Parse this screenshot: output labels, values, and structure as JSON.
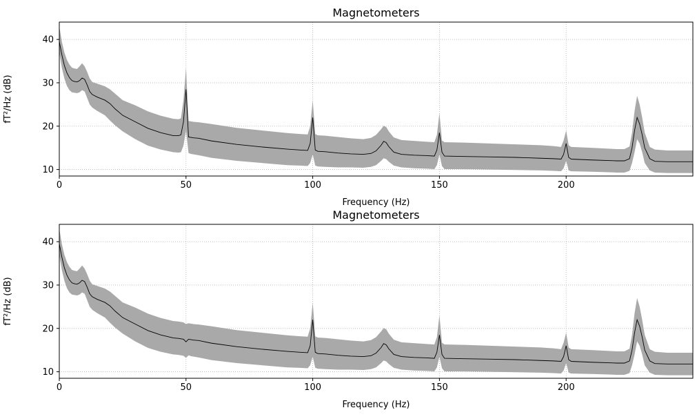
{
  "chart_data": [
    {
      "type": "area",
      "title": "Magnetometers",
      "xlabel": "Frequency (Hz)",
      "ylabel": "fT²/Hz (dB)",
      "xlim": [
        0,
        250
      ],
      "ylim": [
        8.5,
        44
      ],
      "xticks": [
        0,
        50,
        100,
        150,
        200
      ],
      "yticks": [
        10,
        20,
        30,
        40
      ],
      "grid": true,
      "legend": "none",
      "colors": {
        "band": "#a9a9a9",
        "mean": "#000000",
        "grid": "#b0b0b0"
      },
      "series": [
        {
          "x": [
            0,
            1,
            2,
            3,
            4,
            5,
            6,
            7,
            8,
            9,
            10,
            11,
            12,
            13,
            15,
            18,
            20,
            22,
            25,
            30,
            35,
            40,
            45,
            47,
            48,
            49,
            50,
            51,
            52,
            53,
            55,
            60,
            70,
            80,
            90,
            95,
            98,
            99,
            100,
            101,
            102,
            105,
            110,
            115,
            120,
            123,
            125,
            127,
            128,
            129,
            130,
            132,
            135,
            140,
            145,
            148,
            149,
            150,
            151,
            152,
            160,
            170,
            180,
            190,
            195,
            198,
            199,
            200,
            201,
            202,
            210,
            220,
            223,
            225,
            226,
            227,
            228,
            229,
            230,
            231,
            233,
            235,
            240,
            245,
            250
          ],
          "mean": [
            39.5,
            36.5,
            34,
            32.3,
            31.2,
            30.5,
            30.3,
            30.2,
            30.5,
            31.1,
            30.8,
            29.5,
            28,
            27.3,
            26.7,
            26,
            25.2,
            24,
            22.5,
            21,
            19.5,
            18.5,
            17.8,
            17.8,
            18,
            21,
            28.5,
            17.5,
            17.4,
            17.3,
            17.2,
            16.6,
            15.8,
            15.2,
            14.7,
            14.5,
            14.4,
            16,
            22,
            14.5,
            14.2,
            14.1,
            13.8,
            13.6,
            13.5,
            13.7,
            14.3,
            15.6,
            16.5,
            16.2,
            15.3,
            14,
            13.5,
            13.3,
            13.2,
            13.1,
            14.5,
            18.5,
            14,
            13.1,
            13,
            12.9,
            12.8,
            12.6,
            12.5,
            12.4,
            13.5,
            16,
            12.8,
            12.4,
            12.2,
            12,
            12,
            12.5,
            15,
            19,
            22,
            20.5,
            18,
            15,
            12.5,
            11.9,
            11.8,
            11.8,
            11.8
          ],
          "low": [
            37,
            33.5,
            31,
            29.3,
            28.3,
            27.8,
            27.7,
            27.6,
            27.8,
            28.3,
            28,
            26.5,
            25,
            24.3,
            23.5,
            22.5,
            21.3,
            20.2,
            18.8,
            17,
            15.5,
            14.6,
            14,
            13.9,
            14,
            15.5,
            19,
            13.8,
            13.6,
            13.5,
            13.3,
            12.7,
            12,
            11.5,
            11,
            10.9,
            10.8,
            11.5,
            13.5,
            10.9,
            10.7,
            10.6,
            10.5,
            10.5,
            10.4,
            10.6,
            11,
            12,
            12.6,
            12.4,
            11.8,
            10.9,
            10.5,
            10.3,
            10.2,
            10.1,
            11,
            13.5,
            10.8,
            10.1,
            10.1,
            10,
            9.9,
            9.8,
            9.7,
            9.6,
            10.3,
            12,
            9.8,
            9.6,
            9.5,
            9.3,
            9.3,
            9.7,
            11.5,
            14,
            17,
            16,
            14,
            11.5,
            9.8,
            9.3,
            9.2,
            9.2,
            9.2
          ],
          "high": [
            43,
            39.5,
            37,
            35.3,
            34.2,
            33.5,
            33.3,
            33.2,
            33.8,
            34.5,
            33.8,
            32.5,
            31,
            30.2,
            29.8,
            29.2,
            28.5,
            27.5,
            26,
            24.8,
            23.4,
            22.4,
            21.7,
            21.6,
            21.8,
            26,
            33.5,
            21.2,
            21.1,
            21,
            20.9,
            20.5,
            19.6,
            19,
            18.4,
            18.2,
            18.1,
            20,
            26,
            18.2,
            17.9,
            17.8,
            17.5,
            17.2,
            17,
            17.3,
            18,
            19.3,
            20.1,
            19.8,
            18.8,
            17.4,
            16.8,
            16.6,
            16.4,
            16.3,
            18,
            23,
            16.7,
            16.3,
            16.2,
            16,
            15.8,
            15.6,
            15.4,
            15.2,
            16.7,
            19,
            15.6,
            15.2,
            15,
            14.7,
            14.7,
            15.3,
            18.5,
            23.5,
            27,
            25,
            22,
            18.5,
            15.2,
            14.6,
            14.4,
            14.4,
            14.4
          ]
        }
      ]
    },
    {
      "type": "area",
      "title": "Magnetometers",
      "xlabel": "Frequency (Hz)",
      "ylabel": "fT²/Hz (dB)",
      "xlim": [
        0,
        250
      ],
      "ylim": [
        8.5,
        44
      ],
      "xticks": [
        0,
        50,
        100,
        150,
        200
      ],
      "yticks": [
        10,
        20,
        30,
        40
      ],
      "grid": true,
      "legend": "none",
      "colors": {
        "band": "#a9a9a9",
        "mean": "#000000",
        "grid": "#b0b0b0"
      },
      "series": [
        {
          "x": [
            0,
            1,
            2,
            3,
            4,
            5,
            6,
            7,
            8,
            9,
            10,
            11,
            12,
            13,
            15,
            18,
            20,
            22,
            25,
            30,
            35,
            40,
            45,
            47,
            48,
            49,
            50,
            51,
            52,
            53,
            55,
            60,
            70,
            80,
            90,
            95,
            98,
            99,
            100,
            101,
            102,
            105,
            110,
            115,
            120,
            123,
            125,
            127,
            128,
            129,
            130,
            132,
            135,
            140,
            145,
            148,
            149,
            150,
            151,
            152,
            160,
            170,
            180,
            190,
            195,
            198,
            199,
            200,
            201,
            202,
            210,
            220,
            223,
            225,
            226,
            227,
            228,
            229,
            230,
            231,
            233,
            235,
            240,
            245,
            250
          ],
          "mean": [
            39.5,
            36.5,
            34,
            32.3,
            31.2,
            30.5,
            30.3,
            30.2,
            30.5,
            31.1,
            30.8,
            29.5,
            28,
            27.3,
            26.7,
            26,
            25.2,
            24,
            22.5,
            21,
            19.5,
            18.5,
            17.8,
            17.7,
            17.6,
            17.5,
            16.9,
            17.5,
            17.4,
            17.3,
            17.2,
            16.6,
            15.8,
            15.2,
            14.7,
            14.5,
            14.4,
            16,
            22,
            14.5,
            14.2,
            14.1,
            13.8,
            13.6,
            13.5,
            13.7,
            14.3,
            15.6,
            16.5,
            16.2,
            15.3,
            14,
            13.5,
            13.3,
            13.2,
            13.1,
            14.5,
            18.5,
            14,
            13.1,
            13,
            12.9,
            12.8,
            12.6,
            12.5,
            12.4,
            13.5,
            16,
            12.8,
            12.4,
            12.2,
            12,
            12,
            12.5,
            15,
            19,
            22,
            20.5,
            18,
            15,
            12.5,
            11.9,
            11.8,
            11.8,
            11.8
          ],
          "low": [
            37,
            33.5,
            31,
            29.3,
            28.3,
            27.8,
            27.7,
            27.6,
            27.8,
            28.3,
            28,
            26.5,
            25,
            24.3,
            23.5,
            22.5,
            21.3,
            20.2,
            18.8,
            17,
            15.5,
            14.6,
            14,
            13.9,
            13.8,
            13.7,
            13.2,
            13.8,
            13.6,
            13.5,
            13.3,
            12.7,
            12,
            11.5,
            11,
            10.9,
            10.8,
            11.5,
            13.5,
            10.9,
            10.7,
            10.6,
            10.5,
            10.5,
            10.4,
            10.6,
            11,
            12,
            12.6,
            12.4,
            11.8,
            10.9,
            10.5,
            10.3,
            10.2,
            10.1,
            11,
            13.5,
            10.8,
            10.1,
            10.1,
            10,
            9.9,
            9.8,
            9.7,
            9.6,
            10.3,
            12,
            9.8,
            9.6,
            9.5,
            9.3,
            9.3,
            9.7,
            11.5,
            14,
            17,
            16,
            14,
            11.5,
            9.8,
            9.3,
            9.2,
            9.2,
            9.2
          ],
          "high": [
            43,
            39.5,
            37,
            35.3,
            34.2,
            33.5,
            33.3,
            33.2,
            33.8,
            34.5,
            33.8,
            32.5,
            31,
            30.2,
            29.8,
            29.2,
            28.5,
            27.5,
            26,
            24.8,
            23.4,
            22.4,
            21.7,
            21.6,
            21.5,
            21.4,
            21,
            21.2,
            21.1,
            21,
            20.9,
            20.5,
            19.6,
            19,
            18.4,
            18.2,
            18.1,
            20,
            26,
            18.2,
            17.9,
            17.8,
            17.5,
            17.2,
            17,
            17.3,
            18,
            19.3,
            20.1,
            19.8,
            18.8,
            17.4,
            16.8,
            16.6,
            16.4,
            16.3,
            18,
            23,
            16.7,
            16.3,
            16.2,
            16,
            15.8,
            15.6,
            15.4,
            15.2,
            16.7,
            19,
            15.6,
            15.2,
            15,
            14.7,
            14.7,
            15.3,
            18.5,
            23.5,
            27,
            25,
            22,
            18.5,
            15.2,
            14.6,
            14.4,
            14.4,
            14.4
          ]
        }
      ]
    }
  ]
}
